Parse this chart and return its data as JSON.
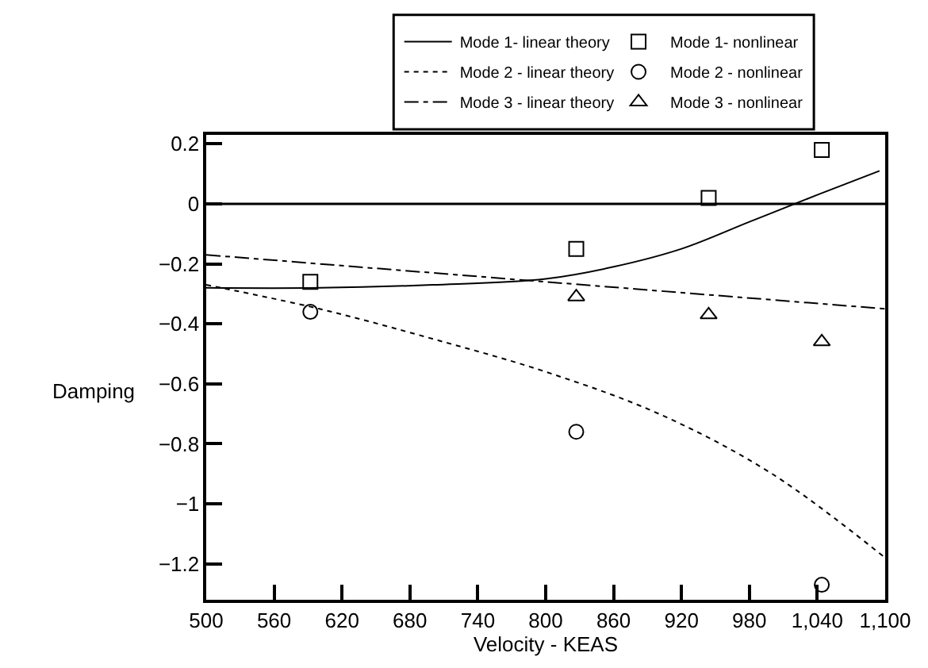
{
  "chart_data": {
    "type": "line",
    "xlabel": "Velocity - KEAS",
    "ylabel": "Damping",
    "series": [
      {
        "name": "Mode 1- linear theory",
        "color": "#000000",
        "line_style": "solid",
        "marker": "none",
        "x": [
          500,
          600,
          700,
          800,
          860,
          920,
          980,
          1040,
          1095
        ],
        "values": [
          -0.28,
          -0.28,
          -0.27,
          -0.25,
          -0.21,
          -0.15,
          -0.06,
          0.03,
          0.11
        ]
      },
      {
        "name": "Mode 1- nonlinear",
        "type": "scatter",
        "color": "#000000",
        "marker": "square",
        "x": [
          592,
          827,
          944,
          1044
        ],
        "values": [
          -0.26,
          -0.15,
          0.02,
          0.18
        ]
      },
      {
        "name": "Mode 2 - linear theory",
        "color": "#000000",
        "line_style": "dotted",
        "marker": "none",
        "x": [
          500,
          600,
          700,
          800,
          900,
          1000,
          1100
        ],
        "values": [
          -0.27,
          -0.35,
          -0.45,
          -0.56,
          -0.7,
          -0.9,
          -1.18
        ]
      },
      {
        "name": "Mode 2 - nonlinear",
        "type": "scatter",
        "color": "#000000",
        "marker": "circle",
        "x": [
          592,
          827,
          1044
        ],
        "values": [
          -0.36,
          -0.76,
          -1.27
        ]
      },
      {
        "name": "Mode 3 - linear theory",
        "color": "#000000",
        "line_style": "dashed",
        "marker": "none",
        "x": [
          500,
          800,
          1100
        ],
        "values": [
          -0.17,
          -0.26,
          -0.35
        ]
      },
      {
        "name": "Mode 3 - nonlinear",
        "type": "scatter",
        "color": "#000000",
        "marker": "triangle",
        "x": [
          827,
          944,
          1044
        ],
        "values": [
          -0.31,
          -0.37,
          -0.46
        ]
      }
    ],
    "xlim": [
      500,
      1100
    ],
    "xticks": [
      500,
      560,
      620,
      680,
      740,
      800,
      860,
      920,
      980,
      {
        "value": 1040,
        "label": "1,040"
      },
      {
        "value": 1100,
        "label": "1,100"
      }
    ],
    "ylim": [
      -1.32,
      0.23
    ],
    "yticks": [
      0.2,
      0,
      -0.2,
      -0.4,
      -0.6,
      -0.8,
      -1.0,
      -1.2
    ],
    "ref_lines": [
      {
        "axis": "y",
        "value": 0,
        "color": "#000000",
        "line_style": "solid"
      }
    ],
    "grid": false,
    "legend": "top"
  }
}
